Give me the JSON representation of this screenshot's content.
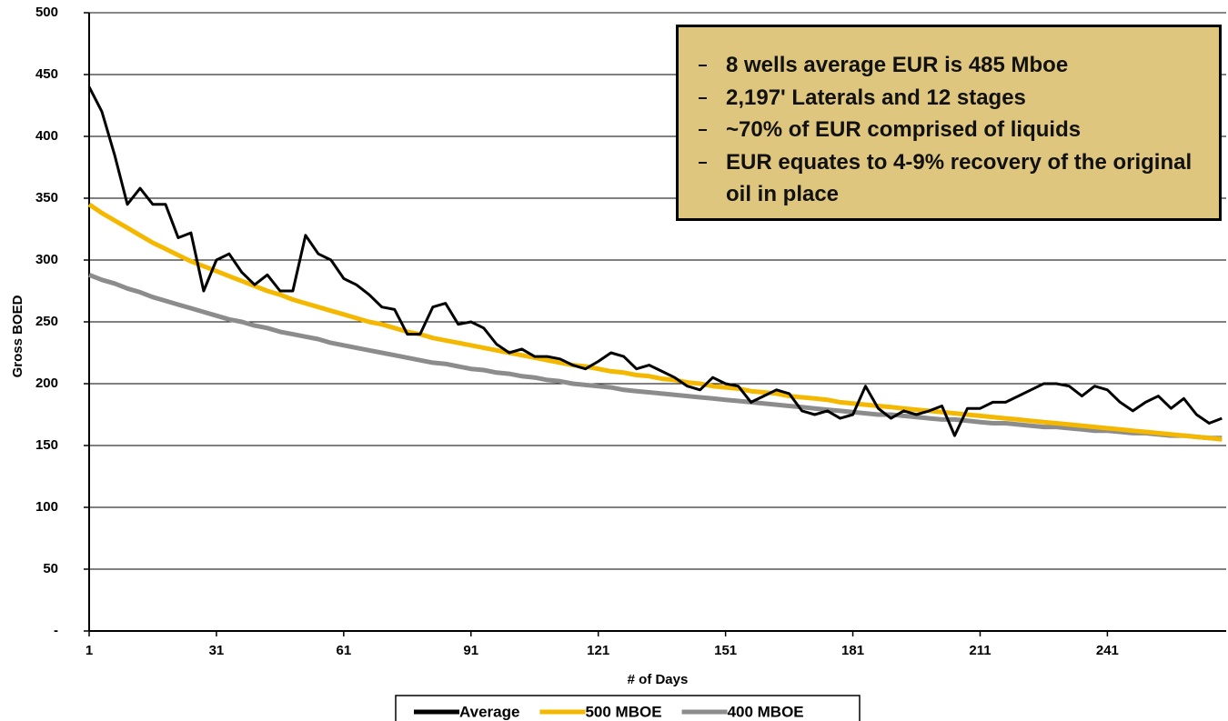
{
  "chart_data": {
    "type": "line",
    "ylabel": "Gross BOED",
    "xlabel": "# of Days",
    "annotation": [
      "8 wells average EUR is 485 Mboe",
      "2,197' Laterals and 12 stages",
      "~70% of EUR comprised of liquids",
      "EUR equates to 4-9% recovery of the original oil in place"
    ],
    "annotation_color": "#dfc67e",
    "x": [
      1,
      4,
      7,
      10,
      13,
      16,
      19,
      22,
      25,
      28,
      31,
      34,
      37,
      40,
      43,
      46,
      49,
      52,
      55,
      58,
      61,
      64,
      67,
      70,
      73,
      76,
      79,
      82,
      85,
      88,
      91,
      94,
      97,
      100,
      103,
      106,
      109,
      112,
      115,
      118,
      121,
      124,
      127,
      130,
      133,
      136,
      139,
      142,
      145,
      148,
      151,
      154,
      157,
      160,
      163,
      166,
      169,
      172,
      175,
      178,
      181,
      184,
      187,
      190,
      193,
      196,
      199,
      202,
      205,
      208,
      211,
      214,
      217,
      220,
      223,
      226,
      229,
      232,
      235,
      238,
      241,
      244,
      247,
      250,
      253,
      256,
      259,
      262,
      265,
      268
    ],
    "series": [
      {
        "name": "Average",
        "color": "#000000",
        "width": 3,
        "values": [
          440,
          420,
          385,
          345,
          358,
          345,
          345,
          318,
          322,
          275,
          300,
          305,
          290,
          280,
          288,
          275,
          275,
          320,
          305,
          300,
          285,
          280,
          272,
          262,
          260,
          240,
          240,
          262,
          265,
          248,
          250,
          245,
          232,
          225,
          228,
          222,
          222,
          220,
          215,
          212,
          218,
          225,
          222,
          212,
          215,
          210,
          205,
          198,
          195,
          205,
          200,
          198,
          185,
          190,
          195,
          192,
          178,
          175,
          178,
          172,
          175,
          198,
          180,
          172,
          178,
          175,
          178,
          182,
          158,
          180,
          180,
          185,
          185,
          190,
          195,
          200,
          200,
          198,
          190,
          198,
          195,
          185,
          178,
          185,
          190,
          180,
          188,
          175,
          168,
          172
        ]
      },
      {
        "name": "500 MBOE",
        "color": "#f5b800",
        "width": 5,
        "values": [
          345,
          338,
          332,
          326,
          320,
          314,
          309,
          304,
          299,
          295,
          291,
          287,
          283,
          279,
          275,
          272,
          268,
          265,
          262,
          259,
          256,
          253,
          250,
          248,
          245,
          242,
          240,
          237,
          235,
          233,
          231,
          229,
          227,
          225,
          223,
          221,
          219,
          217,
          215,
          214,
          212,
          210,
          209,
          207,
          206,
          204,
          203,
          201,
          200,
          198,
          197,
          196,
          194,
          193,
          192,
          190,
          189,
          188,
          187,
          185,
          184,
          183,
          182,
          181,
          180,
          179,
          178,
          177,
          176,
          175,
          174,
          173,
          172,
          171,
          170,
          169,
          168,
          167,
          166,
          165,
          164,
          163,
          162,
          161,
          160,
          159,
          158,
          157,
          156,
          155
        ]
      },
      {
        "name": "400 MBOE",
        "color": "#8c8c8c",
        "width": 5,
        "values": [
          288,
          284,
          281,
          277,
          274,
          270,
          267,
          264,
          261,
          258,
          255,
          252,
          250,
          247,
          245,
          242,
          240,
          238,
          236,
          233,
          231,
          229,
          227,
          225,
          223,
          221,
          219,
          217,
          216,
          214,
          212,
          211,
          209,
          208,
          206,
          205,
          203,
          202,
          200,
          199,
          198,
          197,
          195,
          194,
          193,
          192,
          191,
          190,
          189,
          188,
          187,
          186,
          185,
          184,
          183,
          182,
          181,
          180,
          179,
          178,
          177,
          176,
          175,
          175,
          174,
          173,
          172,
          171,
          171,
          170,
          169,
          168,
          168,
          167,
          166,
          165,
          165,
          164,
          163,
          162,
          162,
          161,
          160,
          160,
          159,
          158,
          158,
          157,
          156,
          156
        ]
      }
    ],
    "xlim": [
      1,
      269
    ],
    "xticks": [
      1,
      31,
      61,
      91,
      121,
      151,
      181,
      211,
      241
    ],
    "ylim": [
      0,
      500
    ],
    "yticks": [
      {
        "value": 0,
        "label": "-"
      },
      50,
      100,
      150,
      200,
      250,
      300,
      350,
      400,
      450,
      500
    ],
    "grid": true,
    "legend": "bottom"
  }
}
